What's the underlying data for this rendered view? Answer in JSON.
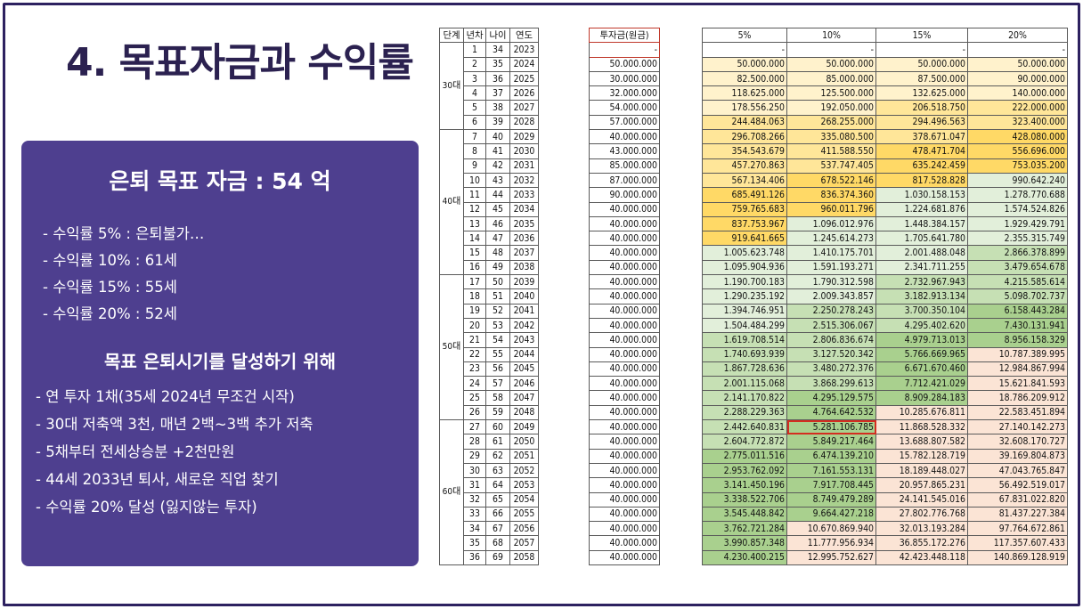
{
  "title": "4. 목표자금과 수익률",
  "panel": {
    "heading": "은퇴 목표 자금 : 54 억",
    "rates": [
      "- 수익률 5% : 은퇴불가…",
      "- 수익률 10% : 61세",
      "- 수익률 15% : 55세",
      "- 수익률 20% : 52세"
    ],
    "subheading": "목표 은퇴시기를 달성하기 위해",
    "plans": [
      "- 연 투자 1채(35세 2024년 무조건 시작)",
      "- 30대 저축액 3천, 매년 2백~3백 추가 저축",
      "- 5채부터 전세상승분 +2천만원",
      "- 44세 2033년 퇴사, 새로운 직업 찾기",
      "- 수익률 20% 달성 (잃지않는 투자)"
    ]
  },
  "table": {
    "headers": {
      "stage": "단계",
      "year_no": "년차",
      "age": "나이",
      "year": "연도",
      "investment": "투자금(원금)",
      "r5": "5%",
      "r10": "10%",
      "r15": "15%",
      "r20": "20%"
    },
    "stages": [
      {
        "label": "30대",
        "rows": 6
      },
      {
        "label": "40대",
        "rows": 10
      },
      {
        "label": "50대",
        "rows": 10
      },
      {
        "label": "60대",
        "rows": 10
      }
    ],
    "highlight_cell": {
      "row": 27,
      "col": "r10"
    },
    "colors": {
      "yellow_light": "#fff2cc",
      "yellow": "#ffe699",
      "yellow_strong": "#ffd966",
      "green_light": "#e2efda",
      "green": "#c6e0b4",
      "green_strong": "#a9d08e",
      "pink": "#fbe4d5",
      "highlight_border": "#d42d20"
    },
    "rows": [
      {
        "n": "1",
        "age": "34",
        "year": "2023",
        "inv": "-",
        "r5": "-",
        "r10": "-",
        "r15": "-",
        "r20": "-"
      },
      {
        "n": "2",
        "age": "35",
        "year": "2024",
        "inv": "50.000.000",
        "r5": "50.000.000",
        "r10": "50.000.000",
        "r15": "50.000.000",
        "r20": "50.000.000"
      },
      {
        "n": "3",
        "age": "36",
        "year": "2025",
        "inv": "30.000.000",
        "r5": "82.500.000",
        "r10": "85.000.000",
        "r15": "87.500.000",
        "r20": "90.000.000"
      },
      {
        "n": "4",
        "age": "37",
        "year": "2026",
        "inv": "32.000.000",
        "r5": "118.625.000",
        "r10": "125.500.000",
        "r15": "132.625.000",
        "r20": "140.000.000"
      },
      {
        "n": "5",
        "age": "38",
        "year": "2027",
        "inv": "54.000.000",
        "r5": "178.556.250",
        "r10": "192.050.000",
        "r15": "206.518.750",
        "r20": "222.000.000"
      },
      {
        "n": "6",
        "age": "39",
        "year": "2028",
        "inv": "57.000.000",
        "r5": "244.484.063",
        "r10": "268.255.000",
        "r15": "294.496.563",
        "r20": "323.400.000"
      },
      {
        "n": "7",
        "age": "40",
        "year": "2029",
        "inv": "40.000.000",
        "r5": "296.708.266",
        "r10": "335.080.500",
        "r15": "378.671.047",
        "r20": "428.080.000"
      },
      {
        "n": "8",
        "age": "41",
        "year": "2030",
        "inv": "43.000.000",
        "r5": "354.543.679",
        "r10": "411.588.550",
        "r15": "478.471.704",
        "r20": "556.696.000"
      },
      {
        "n": "9",
        "age": "42",
        "year": "2031",
        "inv": "85.000.000",
        "r5": "457.270.863",
        "r10": "537.747.405",
        "r15": "635.242.459",
        "r20": "753.035.200"
      },
      {
        "n": "10",
        "age": "43",
        "year": "2032",
        "inv": "87.000.000",
        "r5": "567.134.406",
        "r10": "678.522.146",
        "r15": "817.528.828",
        "r20": "990.642.240"
      },
      {
        "n": "11",
        "age": "44",
        "year": "2033",
        "inv": "90.000.000",
        "r5": "685.491.126",
        "r10": "836.374.360",
        "r15": "1.030.158.153",
        "r20": "1.278.770.688"
      },
      {
        "n": "12",
        "age": "45",
        "year": "2034",
        "inv": "40.000.000",
        "r5": "759.765.683",
        "r10": "960.011.796",
        "r15": "1.224.681.876",
        "r20": "1.574.524.826"
      },
      {
        "n": "13",
        "age": "46",
        "year": "2035",
        "inv": "40.000.000",
        "r5": "837.753.967",
        "r10": "1.096.012.976",
        "r15": "1.448.384.157",
        "r20": "1.929.429.791"
      },
      {
        "n": "14",
        "age": "47",
        "year": "2036",
        "inv": "40.000.000",
        "r5": "919.641.665",
        "r10": "1.245.614.273",
        "r15": "1.705.641.780",
        "r20": "2.355.315.749"
      },
      {
        "n": "15",
        "age": "48",
        "year": "2037",
        "inv": "40.000.000",
        "r5": "1.005.623.748",
        "r10": "1.410.175.701",
        "r15": "2.001.488.048",
        "r20": "2.866.378.899"
      },
      {
        "n": "16",
        "age": "49",
        "year": "2038",
        "inv": "40.000.000",
        "r5": "1.095.904.936",
        "r10": "1.591.193.271",
        "r15": "2.341.711.255",
        "r20": "3.479.654.678"
      },
      {
        "n": "17",
        "age": "50",
        "year": "2039",
        "inv": "40.000.000",
        "r5": "1.190.700.183",
        "r10": "1.790.312.598",
        "r15": "2.732.967.943",
        "r20": "4.215.585.614"
      },
      {
        "n": "18",
        "age": "51",
        "year": "2040",
        "inv": "40.000.000",
        "r5": "1.290.235.192",
        "r10": "2.009.343.857",
        "r15": "3.182.913.134",
        "r20": "5.098.702.737"
      },
      {
        "n": "19",
        "age": "52",
        "year": "2041",
        "inv": "40.000.000",
        "r5": "1.394.746.951",
        "r10": "2.250.278.243",
        "r15": "3.700.350.104",
        "r20": "6.158.443.284"
      },
      {
        "n": "20",
        "age": "53",
        "year": "2042",
        "inv": "40.000.000",
        "r5": "1.504.484.299",
        "r10": "2.515.306.067",
        "r15": "4.295.402.620",
        "r20": "7.430.131.941"
      },
      {
        "n": "21",
        "age": "54",
        "year": "2043",
        "inv": "40.000.000",
        "r5": "1.619.708.514",
        "r10": "2.806.836.674",
        "r15": "4.979.713.013",
        "r20": "8.956.158.329"
      },
      {
        "n": "22",
        "age": "55",
        "year": "2044",
        "inv": "40.000.000",
        "r5": "1.740.693.939",
        "r10": "3.127.520.342",
        "r15": "5.766.669.965",
        "r20": "10.787.389.995"
      },
      {
        "n": "23",
        "age": "56",
        "year": "2045",
        "inv": "40.000.000",
        "r5": "1.867.728.636",
        "r10": "3.480.272.376",
        "r15": "6.671.670.460",
        "r20": "12.984.867.994"
      },
      {
        "n": "24",
        "age": "57",
        "year": "2046",
        "inv": "40.000.000",
        "r5": "2.001.115.068",
        "r10": "3.868.299.613",
        "r15": "7.712.421.029",
        "r20": "15.621.841.593"
      },
      {
        "n": "25",
        "age": "58",
        "year": "2047",
        "inv": "40.000.000",
        "r5": "2.141.170.822",
        "r10": "4.295.129.575",
        "r15": "8.909.284.183",
        "r20": "18.786.209.912"
      },
      {
        "n": "26",
        "age": "59",
        "year": "2048",
        "inv": "40.000.000",
        "r5": "2.288.229.363",
        "r10": "4.764.642.532",
        "r15": "10.285.676.811",
        "r20": "22.583.451.894"
      },
      {
        "n": "27",
        "age": "60",
        "year": "2049",
        "inv": "40.000.000",
        "r5": "2.442.640.831",
        "r10": "5.281.106.785",
        "r15": "11.868.528.332",
        "r20": "27.140.142.273"
      },
      {
        "n": "28",
        "age": "61",
        "year": "2050",
        "inv": "40.000.000",
        "r5": "2.604.772.872",
        "r10": "5.849.217.464",
        "r15": "13.688.807.582",
        "r20": "32.608.170.727"
      },
      {
        "n": "29",
        "age": "62",
        "year": "2051",
        "inv": "40.000.000",
        "r5": "2.775.011.516",
        "r10": "6.474.139.210",
        "r15": "15.782.128.719",
        "r20": "39.169.804.873"
      },
      {
        "n": "30",
        "age": "63",
        "year": "2052",
        "inv": "40.000.000",
        "r5": "2.953.762.092",
        "r10": "7.161.553.131",
        "r15": "18.189.448.027",
        "r20": "47.043.765.847"
      },
      {
        "n": "31",
        "age": "64",
        "year": "2053",
        "inv": "40.000.000",
        "r5": "3.141.450.196",
        "r10": "7.917.708.445",
        "r15": "20.957.865.231",
        "r20": "56.492.519.017"
      },
      {
        "n": "32",
        "age": "65",
        "year": "2054",
        "inv": "40.000.000",
        "r5": "3.338.522.706",
        "r10": "8.749.479.289",
        "r15": "24.141.545.016",
        "r20": "67.831.022.820"
      },
      {
        "n": "33",
        "age": "66",
        "year": "2055",
        "inv": "40.000.000",
        "r5": "3.545.448.842",
        "r10": "9.664.427.218",
        "r15": "27.802.776.768",
        "r20": "81.437.227.384"
      },
      {
        "n": "34",
        "age": "67",
        "year": "2056",
        "inv": "40.000.000",
        "r5": "3.762.721.284",
        "r10": "10.670.869.940",
        "r15": "32.013.193.284",
        "r20": "97.764.672.861"
      },
      {
        "n": "35",
        "age": "68",
        "year": "2057",
        "inv": "40.000.000",
        "r5": "3.990.857.348",
        "r10": "11.777.956.934",
        "r15": "36.855.172.276",
        "r20": "117.357.607.433"
      },
      {
        "n": "36",
        "age": "69",
        "year": "2058",
        "inv": "40.000.000",
        "r5": "4.230.400.215",
        "r10": "12.995.752.627",
        "r15": "42.423.448.118",
        "r20": "140.869.128.919"
      }
    ]
  }
}
